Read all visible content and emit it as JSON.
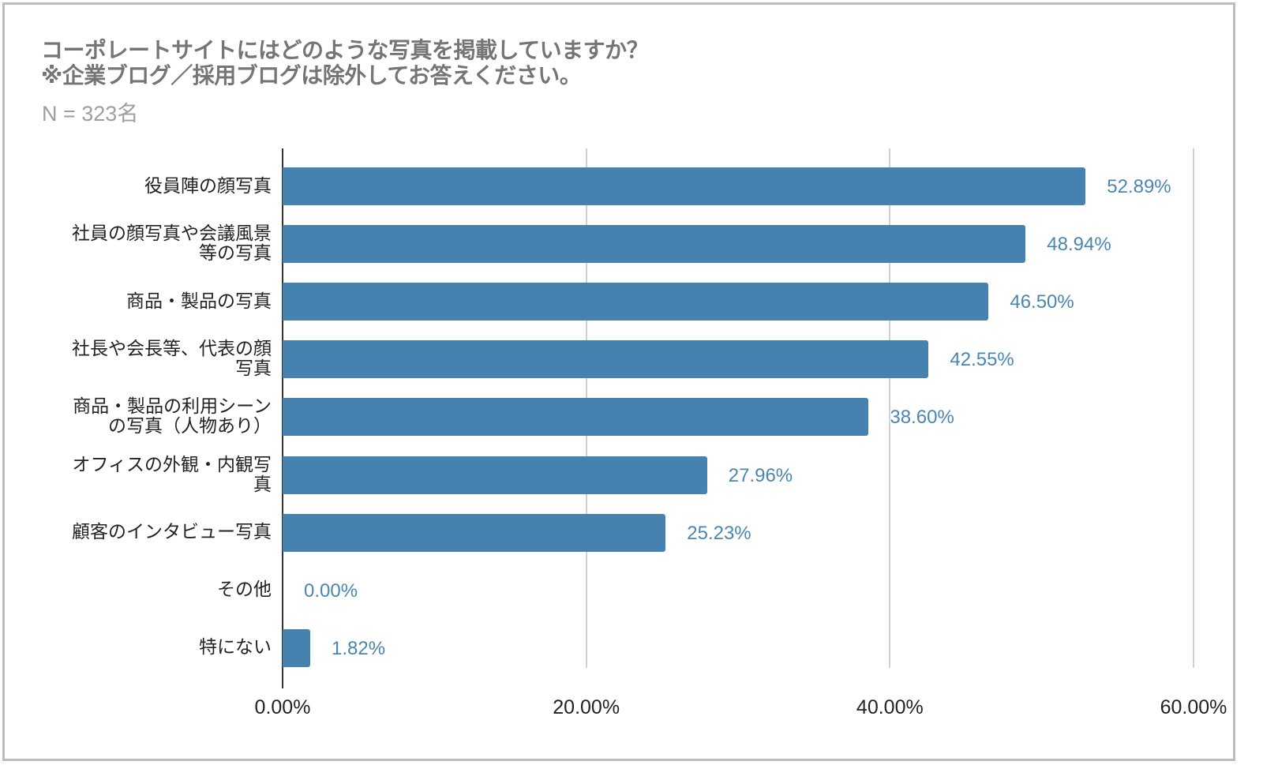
{
  "title": {
    "line1": "コーポレートサイトにはどのような写真を掲載していますか？",
    "line2": "※企業ブログ／採用ブログは除外してお答えください。"
  },
  "subtitle": "N = 323名",
  "colors": {
    "bar": "#4682b0",
    "value_label": "#4a86b4",
    "gridline": "#d0d0d0",
    "axis": "#333333",
    "title": "#757575",
    "subtitle": "#9e9e9e"
  },
  "axis": {
    "ticks": [
      "0.00%",
      "20.00%",
      "40.00%",
      "60.00%"
    ]
  },
  "bars": [
    {
      "label": "役員陣の顔写真",
      "value": 52.89,
      "value_label": "52.89%"
    },
    {
      "label": "社員の顔写真や会議風景\n等の写真",
      "value": 48.94,
      "value_label": "48.94%"
    },
    {
      "label": "商品・製品の写真",
      "value": 46.5,
      "value_label": "46.50%"
    },
    {
      "label": "社長や会長等、代表の顔\n写真",
      "value": 42.55,
      "value_label": "42.55%"
    },
    {
      "label": "商品・製品の利用シーン\nの写真（人物あり）",
      "value": 38.6,
      "value_label": "38.60%"
    },
    {
      "label": "オフィスの外観・内観写\n真",
      "value": 27.96,
      "value_label": "27.96%"
    },
    {
      "label": "顧客のインタビュー写真",
      "value": 25.23,
      "value_label": "25.23%"
    },
    {
      "label": "その他",
      "value": 0.0,
      "value_label": "0.00%"
    },
    {
      "label": "特にない",
      "value": 1.82,
      "value_label": "1.82%"
    }
  ],
  "chart_data": {
    "type": "bar",
    "orientation": "horizontal",
    "title": "コーポレートサイトにはどのような写真を掲載していますか？ ※企業ブログ／採用ブログは除外してお答えください。",
    "subtitle": "N = 323名",
    "categories": [
      "役員陣の顔写真",
      "社員の顔写真や会議風景等の写真",
      "商品・製品の写真",
      "社長や会長等、代表の顔写真",
      "商品・製品の利用シーンの写真（人物あり）",
      "オフィスの外観・内観写真",
      "顧客のインタビュー写真",
      "その他",
      "特にない"
    ],
    "values": [
      52.89,
      48.94,
      46.5,
      42.55,
      38.6,
      27.96,
      25.23,
      0.0,
      1.82
    ],
    "xlabel": "",
    "ylabel": "",
    "xlim": [
      0,
      60
    ],
    "xticks": [
      "0.00%",
      "20.00%",
      "40.00%",
      "60.00%"
    ],
    "grid": true,
    "legend": null,
    "data_labels": true,
    "unit": "%"
  }
}
